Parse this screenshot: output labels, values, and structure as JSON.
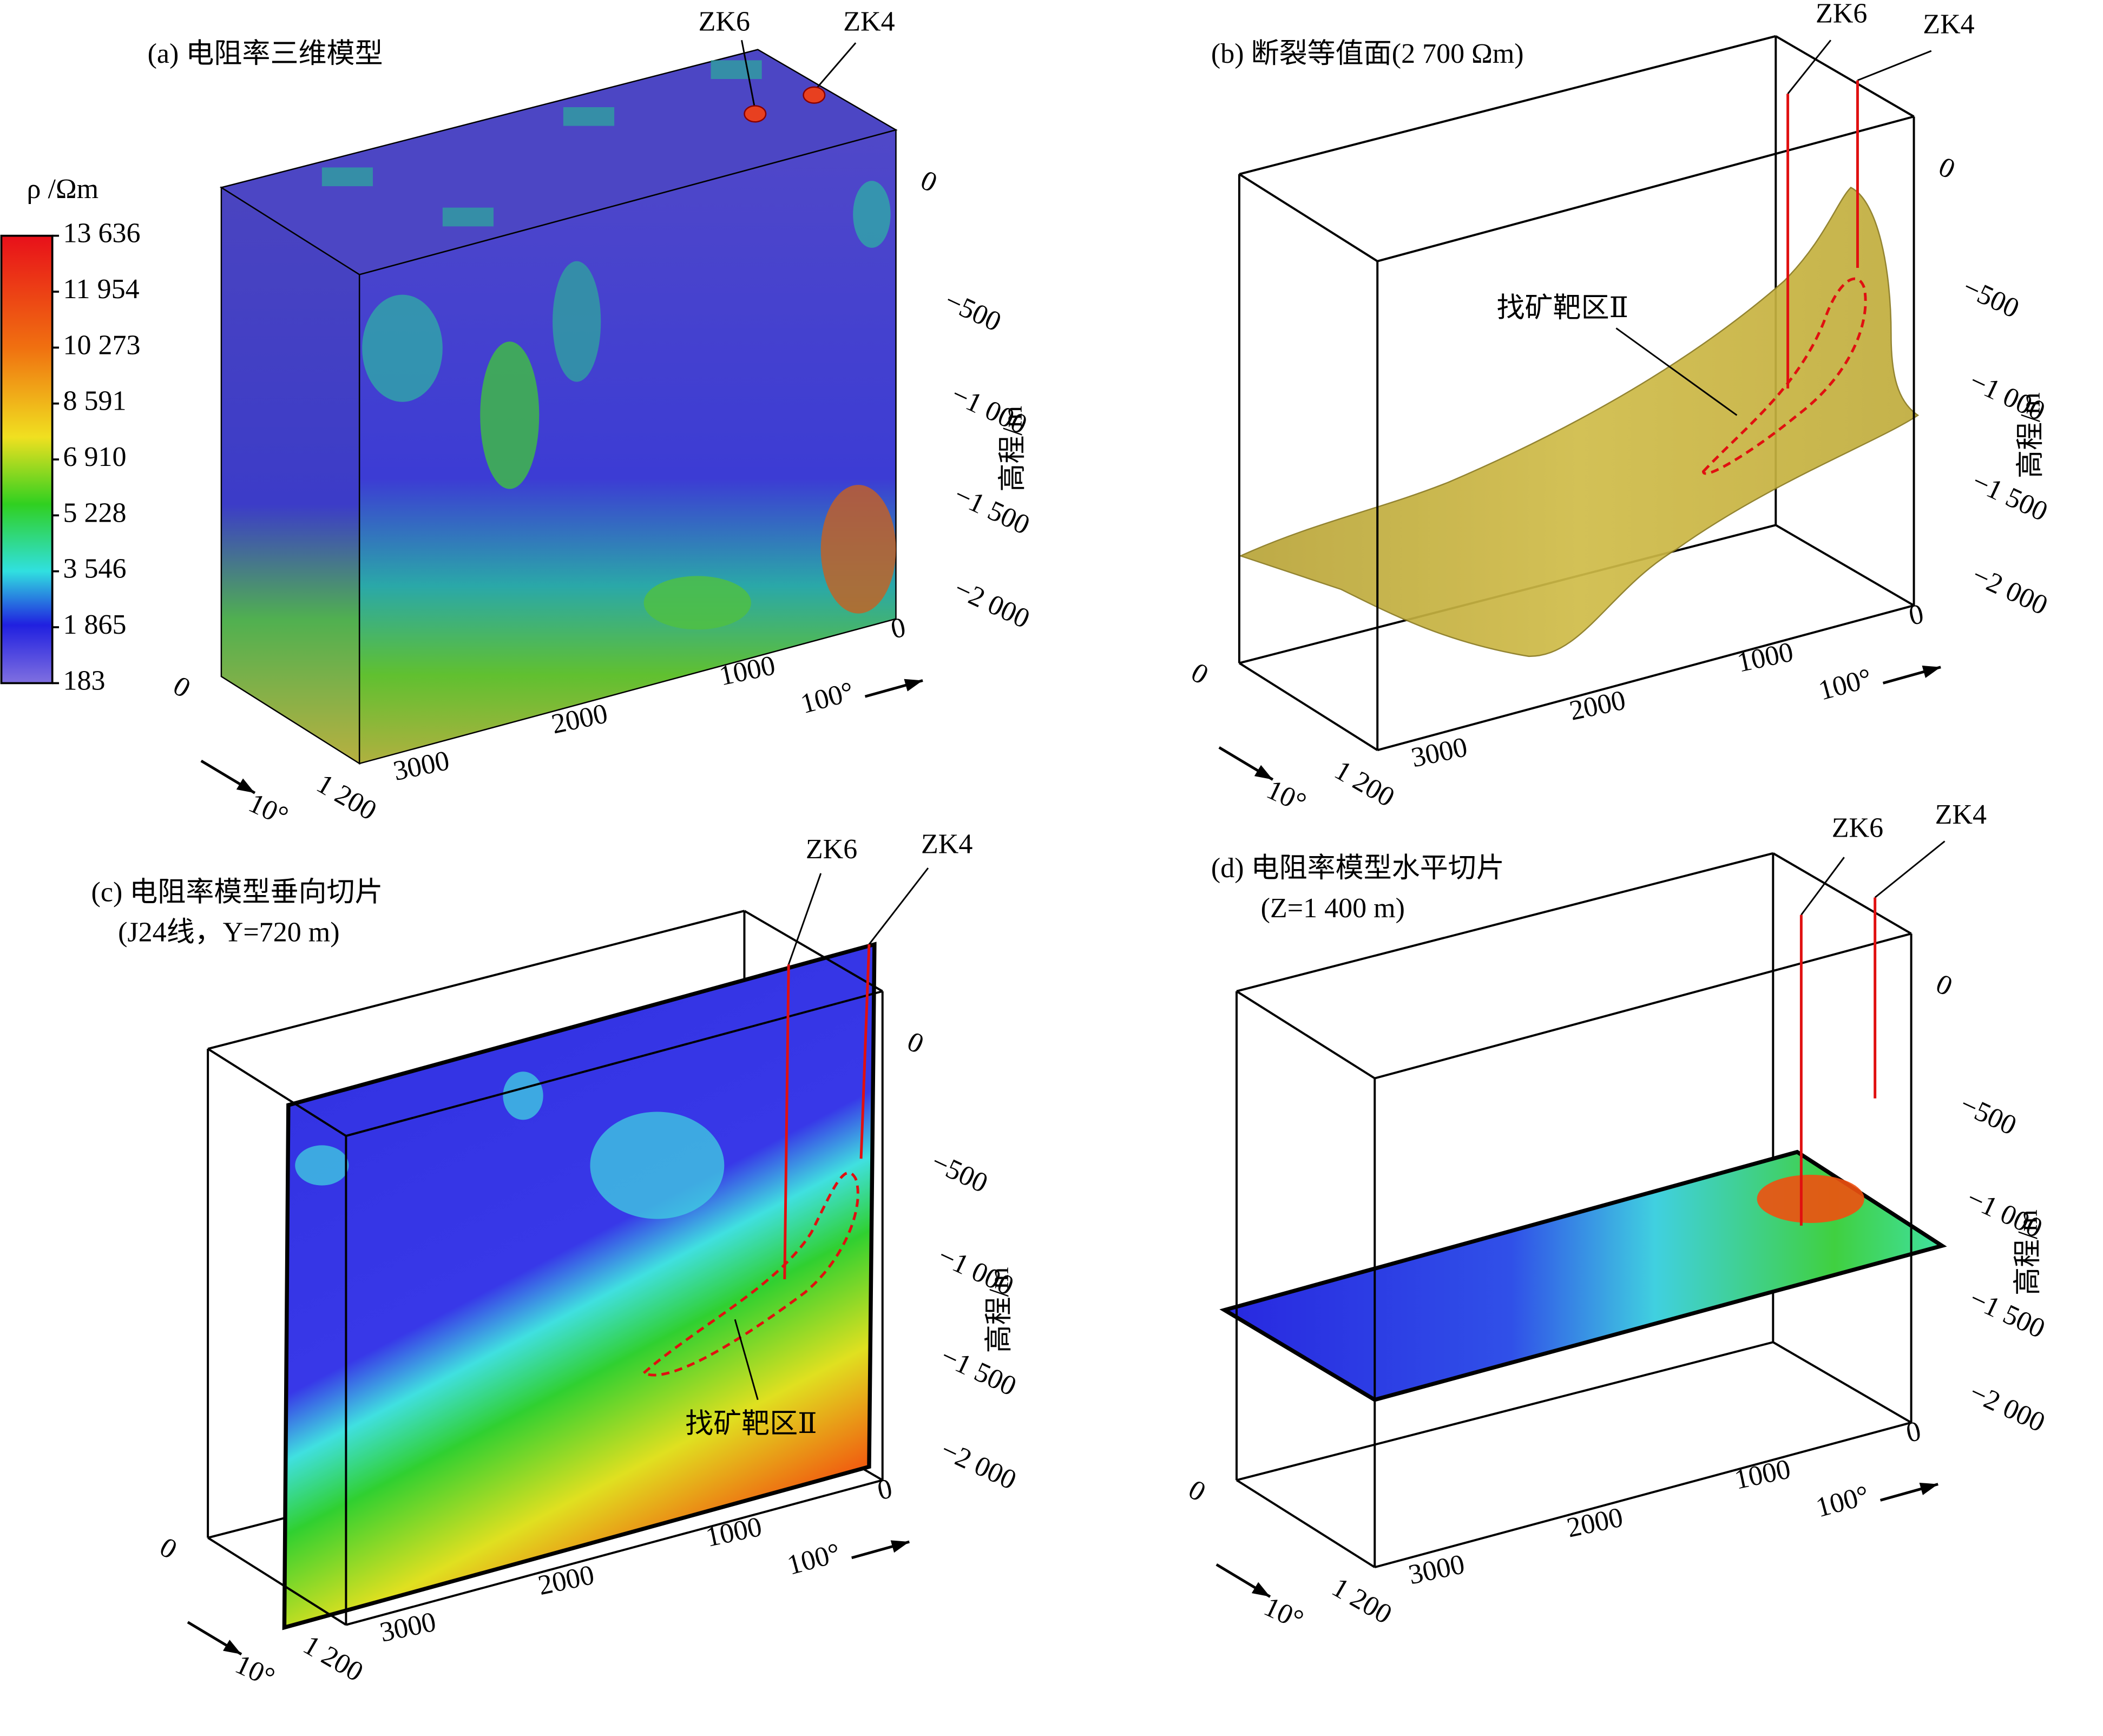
{
  "colorbar": {
    "label": "ρ /Ωm",
    "ticks": [
      "13 636",
      "11 954",
      "10 273",
      "8 591",
      "6 910",
      "5 228",
      "3 546",
      "1 865",
      "183"
    ]
  },
  "panels": [
    {
      "title": "(a) 电阻率三维模型",
      "wells": [
        "ZK6",
        "ZK4"
      ],
      "z_label": "高程/m",
      "z_ticks": [
        "0",
        "−500",
        "−1 000",
        "−1 500",
        "−2 000"
      ],
      "x_ticks": [
        "3000",
        "2000",
        "1000",
        "0"
      ],
      "y_ticks": [
        "0",
        "1 200"
      ],
      "directions": [
        "10°",
        "100°"
      ]
    },
    {
      "title": "(b) 断裂等值面(2 700 Ωm)",
      "wells": [
        "ZK6",
        "ZK4"
      ],
      "annotation": "找矿靶区Ⅱ",
      "z_label": "高程/m",
      "z_ticks": [
        "0",
        "−500",
        "−1 000",
        "−1 500",
        "−2 000"
      ],
      "x_ticks": [
        "3000",
        "2000",
        "1000",
        "0"
      ],
      "y_ticks": [
        "0",
        "1 200"
      ],
      "directions": [
        "10°",
        "100°"
      ]
    },
    {
      "title": "(c) 电阻率模型垂向切片",
      "subtitle": "(J24线，Y=720 m)",
      "wells": [
        "ZK6",
        "ZK4"
      ],
      "annotation": "找矿靶区Ⅱ",
      "z_label": "高程/m",
      "z_ticks": [
        "0",
        "−500",
        "−1 000",
        "−1 500",
        "−2 000"
      ],
      "x_ticks": [
        "3000",
        "2000",
        "1000",
        "0"
      ],
      "y_ticks": [
        "0",
        "1 200"
      ],
      "directions": [
        "10°",
        "100°"
      ]
    },
    {
      "title": "(d) 电阻率模型水平切片",
      "subtitle": "(Z=1 400 m)",
      "wells": [
        "ZK6",
        "ZK4"
      ],
      "z_label": "高程/m",
      "z_ticks": [
        "0",
        "−500",
        "−1 000",
        "−1 500",
        "−2 000"
      ],
      "x_ticks": [
        "3000",
        "2000",
        "1000",
        "0"
      ],
      "y_ticks": [
        "0",
        "1 200"
      ],
      "directions": [
        "10°",
        "100°"
      ]
    }
  ]
}
